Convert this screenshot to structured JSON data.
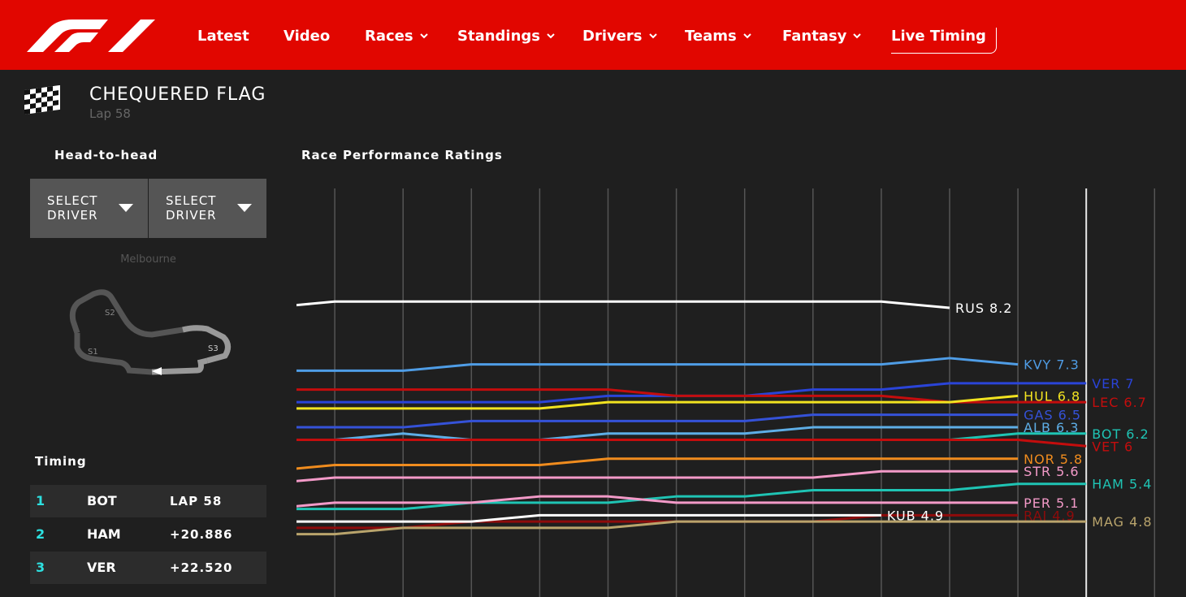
{
  "nav": {
    "items": [
      "Latest",
      "Video",
      "Races",
      "Standings",
      "Drivers",
      "Teams",
      "Fantasy",
      "Live Timing"
    ]
  },
  "header": {
    "title": "CHEQUERED FLAG",
    "subtitle": "Lap 58"
  },
  "head_to_head": {
    "title": "Head-to-head",
    "buttons": [
      "SELECT DRIVER",
      "SELECT DRIVER"
    ]
  },
  "track": {
    "name": "Melbourne",
    "sectors": [
      "S1",
      "S2",
      "S3"
    ]
  },
  "timing": {
    "title": "Timing",
    "rows": [
      {
        "pos": 1,
        "driver": "BOT",
        "gap": "LAP 58"
      },
      {
        "pos": 2,
        "driver": "HAM",
        "gap": "+20.886"
      },
      {
        "pos": 3,
        "driver": "VER",
        "gap": "+22.520"
      }
    ]
  },
  "chart_data": {
    "type": "line",
    "title": "Race Performance Ratings",
    "categories": [
      null,
      null,
      null,
      null,
      null,
      null,
      null,
      null,
      null,
      null,
      null,
      null,
      null
    ],
    "ylim": [
      3.6,
      10.1
    ],
    "series": [
      {
        "name": "RUS",
        "color": "#ffffff",
        "values": [
          8.2,
          8.3,
          8.3,
          8.3,
          8.3,
          8.3,
          8.3,
          8.3,
          8.3,
          8.3,
          8.2,
          null,
          null
        ]
      },
      {
        "name": "KVY",
        "color": "#4f9de6",
        "values": [
          7.2,
          7.2,
          7.2,
          7.3,
          7.3,
          7.3,
          7.3,
          7.3,
          7.3,
          7.3,
          7.4,
          7.3,
          null
        ]
      },
      {
        "name": "VER",
        "color": "#2a44d8",
        "values": [
          6.7,
          6.7,
          6.7,
          6.7,
          6.7,
          6.8,
          6.8,
          6.8,
          6.9,
          6.9,
          7,
          7,
          7
        ]
      },
      {
        "name": "LEC",
        "color": "#c40d0d",
        "values": [
          6.9,
          6.9,
          6.9,
          6.9,
          6.9,
          6.9,
          6.8,
          6.8,
          6.8,
          6.8,
          6.7,
          6.7,
          6.7
        ]
      },
      {
        "name": "HUL",
        "color": "#f2e320",
        "values": [
          6.6,
          6.6,
          6.6,
          6.6,
          6.6,
          6.7,
          6.7,
          6.7,
          6.7,
          6.7,
          6.7,
          6.8,
          null
        ]
      },
      {
        "name": "GAS",
        "color": "#3552d8",
        "values": [
          6.3,
          6.3,
          6.3,
          6.4,
          6.4,
          6.4,
          6.4,
          6.4,
          6.5,
          6.5,
          6.5,
          6.5,
          null
        ]
      },
      {
        "name": "ALB",
        "color": "#5eaee6",
        "values": [
          6.1,
          6.1,
          6.2,
          6.1,
          6.1,
          6.2,
          6.2,
          6.2,
          6.3,
          6.3,
          6.3,
          6.3,
          null
        ]
      },
      {
        "name": "BOT",
        "color": "#1fc4b4",
        "values": [
          6.1,
          6.1,
          6.1,
          6.1,
          6.1,
          6.1,
          6.1,
          6.1,
          6.1,
          6.1,
          6.1,
          6.2,
          6.2
        ]
      },
      {
        "name": "VET",
        "color": "#c40d0d",
        "values": [
          6.1,
          6.1,
          6.1,
          6.1,
          6.1,
          6.1,
          6.1,
          6.1,
          6.1,
          6.1,
          6.1,
          6.1,
          6
        ]
      },
      {
        "name": "NOR",
        "color": "#f08c1e",
        "values": [
          5.6,
          5.7,
          5.7,
          5.7,
          5.7,
          5.8,
          5.8,
          5.8,
          5.8,
          5.8,
          5.8,
          5.8,
          null
        ]
      },
      {
        "name": "STR",
        "color": "#f39ac8",
        "values": [
          5.4,
          5.5,
          5.5,
          5.5,
          5.5,
          5.5,
          5.5,
          5.5,
          5.5,
          5.6,
          5.6,
          5.6,
          null
        ]
      },
      {
        "name": "HAM",
        "color": "#1fc4b4",
        "values": [
          5.0,
          5.0,
          5.0,
          5.1,
          5.1,
          5.1,
          5.2,
          5.2,
          5.3,
          5.3,
          5.3,
          5.4,
          5.4
        ]
      },
      {
        "name": "PER",
        "color": "#f39ac8",
        "values": [
          5.0,
          5.1,
          5.1,
          5.1,
          5.2,
          5.2,
          5.1,
          5.1,
          5.1,
          5.1,
          5.1,
          5.1,
          null
        ]
      },
      {
        "name": "RAI",
        "color": "#8e0b0b",
        "values": [
          4.7,
          4.7,
          4.7,
          4.8,
          4.8,
          4.8,
          4.8,
          4.8,
          4.8,
          4.9,
          4.9,
          4.9,
          null
        ]
      },
      {
        "name": "KUB",
        "color": "#ffffff",
        "values": [
          4.8,
          4.8,
          4.8,
          4.8,
          4.9,
          4.9,
          4.9,
          4.9,
          4.9,
          4.9,
          null,
          null,
          null
        ]
      },
      {
        "name": "MAG",
        "color": "#b9a46c",
        "values": [
          4.6,
          4.6,
          4.7,
          4.7,
          4.7,
          4.7,
          4.8,
          4.8,
          4.8,
          4.8,
          4.8,
          4.8,
          4.8
        ]
      }
    ]
  }
}
